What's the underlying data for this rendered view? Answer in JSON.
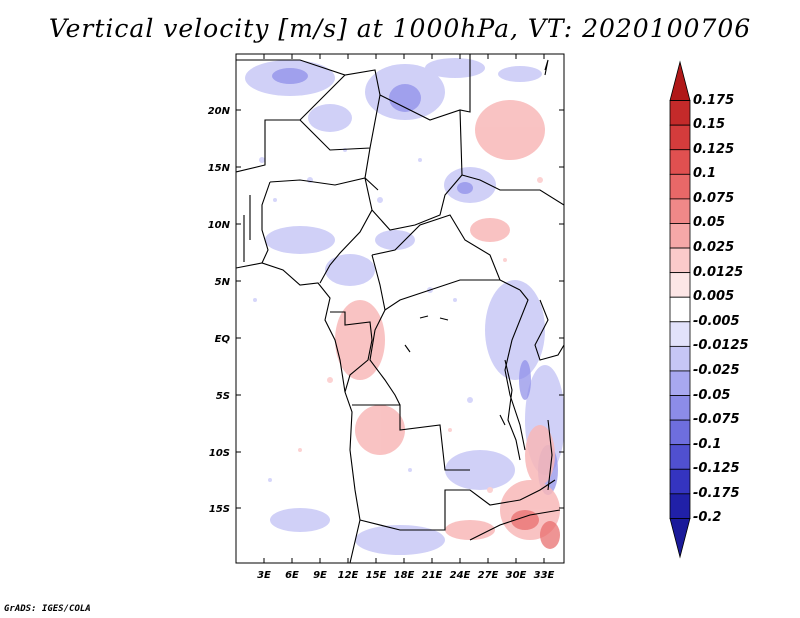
{
  "title": "Vertical velocity [m/s] at 1000hPa, VT: 2020100706",
  "footer": "GrADS: IGES/COLA",
  "map": {
    "lat_labels": [
      "20N",
      "15N",
      "10N",
      "5N",
      "EQ",
      "5S",
      "10S",
      "15S"
    ],
    "lon_labels": [
      "3E",
      "6E",
      "9E",
      "12E",
      "15E",
      "18E",
      "21E",
      "24E",
      "27E",
      "30E",
      "33E"
    ]
  },
  "colorbar": {
    "labels": [
      "0.175",
      "0.15",
      "0.125",
      "0.1",
      "0.075",
      "0.05",
      "0.025",
      "0.0125",
      "0.005",
      "-0.005",
      "-0.0125",
      "-0.025",
      "-0.05",
      "-0.075",
      "-0.1",
      "-0.125",
      "-0.175",
      "-0.2"
    ],
    "colors": [
      "#b01818",
      "#c42a2a",
      "#d43c3c",
      "#e05050",
      "#e86868",
      "#f08888",
      "#f6a8a8",
      "#fbcaca",
      "#fde6e6",
      "#ffffff",
      "#e2e2fb",
      "#c6c6f6",
      "#a8a8f0",
      "#8c8ce8",
      "#6e6ede",
      "#5050d0",
      "#3434c0",
      "#2020a8",
      "#1a1a9a"
    ]
  },
  "chart_data": {
    "type": "heatmap",
    "title": "Vertical velocity [m/s] at 1000hPa, VT: 2020100706",
    "variable": "Vertical velocity",
    "units": "m/s",
    "level": "1000hPa",
    "valid_time": "2020100706",
    "lon_range": [
      0,
      34
    ],
    "lat_range": [
      -20,
      24
    ],
    "xticks": [
      "3E",
      "6E",
      "9E",
      "12E",
      "15E",
      "18E",
      "21E",
      "24E",
      "27E",
      "30E",
      "33E"
    ],
    "yticks": [
      "20N",
      "15N",
      "10N",
      "5N",
      "EQ",
      "5S",
      "10S",
      "15S"
    ],
    "levels": [
      -0.2,
      -0.175,
      -0.125,
      -0.1,
      -0.075,
      -0.05,
      -0.025,
      -0.0125,
      -0.005,
      0.005,
      0.0125,
      0.025,
      0.05,
      0.075,
      0.1,
      0.125,
      0.15,
      0.175
    ]
  }
}
